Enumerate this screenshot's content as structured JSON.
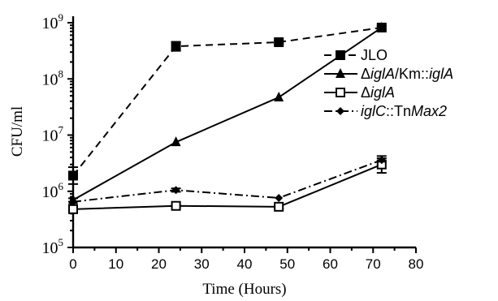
{
  "chart_data": {
    "type": "line",
    "xlabel": "Time (Hours)",
    "ylabel": "CFU/ml",
    "xlim": [
      0,
      80
    ],
    "ylim_log10": [
      5,
      9
    ],
    "y_scale": "log",
    "xticks": [
      "0",
      "10",
      "20",
      "30",
      "40",
      "50",
      "60",
      "70",
      "80"
    ],
    "yticks": [
      {
        "base": "10",
        "exp": "5",
        "log": 5
      },
      {
        "base": "10",
        "exp": "6",
        "log": 6
      },
      {
        "base": "10",
        "exp": "7",
        "log": 7
      },
      {
        "base": "10",
        "exp": "8",
        "log": 8
      },
      {
        "base": "10",
        "exp": "9",
        "log": 9
      }
    ],
    "legend_position": "right",
    "series": [
      {
        "name": "JLO",
        "legend_parts": [
          {
            "text": "JLO",
            "italic": false
          }
        ],
        "marker": "filled-square",
        "dash": "9,6",
        "x": [
          0,
          24,
          48,
          72
        ],
        "y": [
          1900000.0,
          380000000.0,
          450000000.0,
          820000000.0
        ],
        "err_log": [
          0.15,
          0.08,
          0.03,
          0.03
        ]
      },
      {
        "name": "ΔiglA/Km::iglA",
        "legend_parts": [
          {
            "text": "Δ",
            "italic": false
          },
          {
            "text": "iglA",
            "italic": true
          },
          {
            "text": "/Km::",
            "italic": false
          },
          {
            "text": "iglA",
            "italic": true
          }
        ],
        "marker": "filled-triangle",
        "dash": "",
        "x": [
          0,
          24,
          48,
          72
        ],
        "y": [
          700000.0,
          7500000.0,
          47000000.0,
          820000000.0
        ],
        "err_log": [
          0.03,
          0.02,
          0.02,
          0.02
        ]
      },
      {
        "name": "ΔiglA",
        "legend_parts": [
          {
            "text": "Δ",
            "italic": false
          },
          {
            "text": "iglA",
            "italic": true
          }
        ],
        "marker": "open-square",
        "dash": "",
        "x": [
          0,
          24,
          48,
          72
        ],
        "y": [
          480000.0,
          550000.0,
          530000.0,
          3000000.0
        ],
        "err_log": [
          0.03,
          0.03,
          0.03,
          0.15
        ]
      },
      {
        "name": "iglC::TnMax2",
        "legend_parts": [
          {
            "text": "iglC",
            "italic": true
          },
          {
            "text": "::Tn",
            "italic": false
          },
          {
            "text": "Max2",
            "italic": true
          }
        ],
        "marker": "filled-diamond",
        "dash": "10,4,2,4",
        "x": [
          0,
          24,
          48,
          72
        ],
        "y": [
          650000.0,
          1050000.0,
          760000.0,
          3600000.0
        ],
        "err_log": [
          0.02,
          0.03,
          0.02,
          0.03
        ]
      }
    ]
  }
}
